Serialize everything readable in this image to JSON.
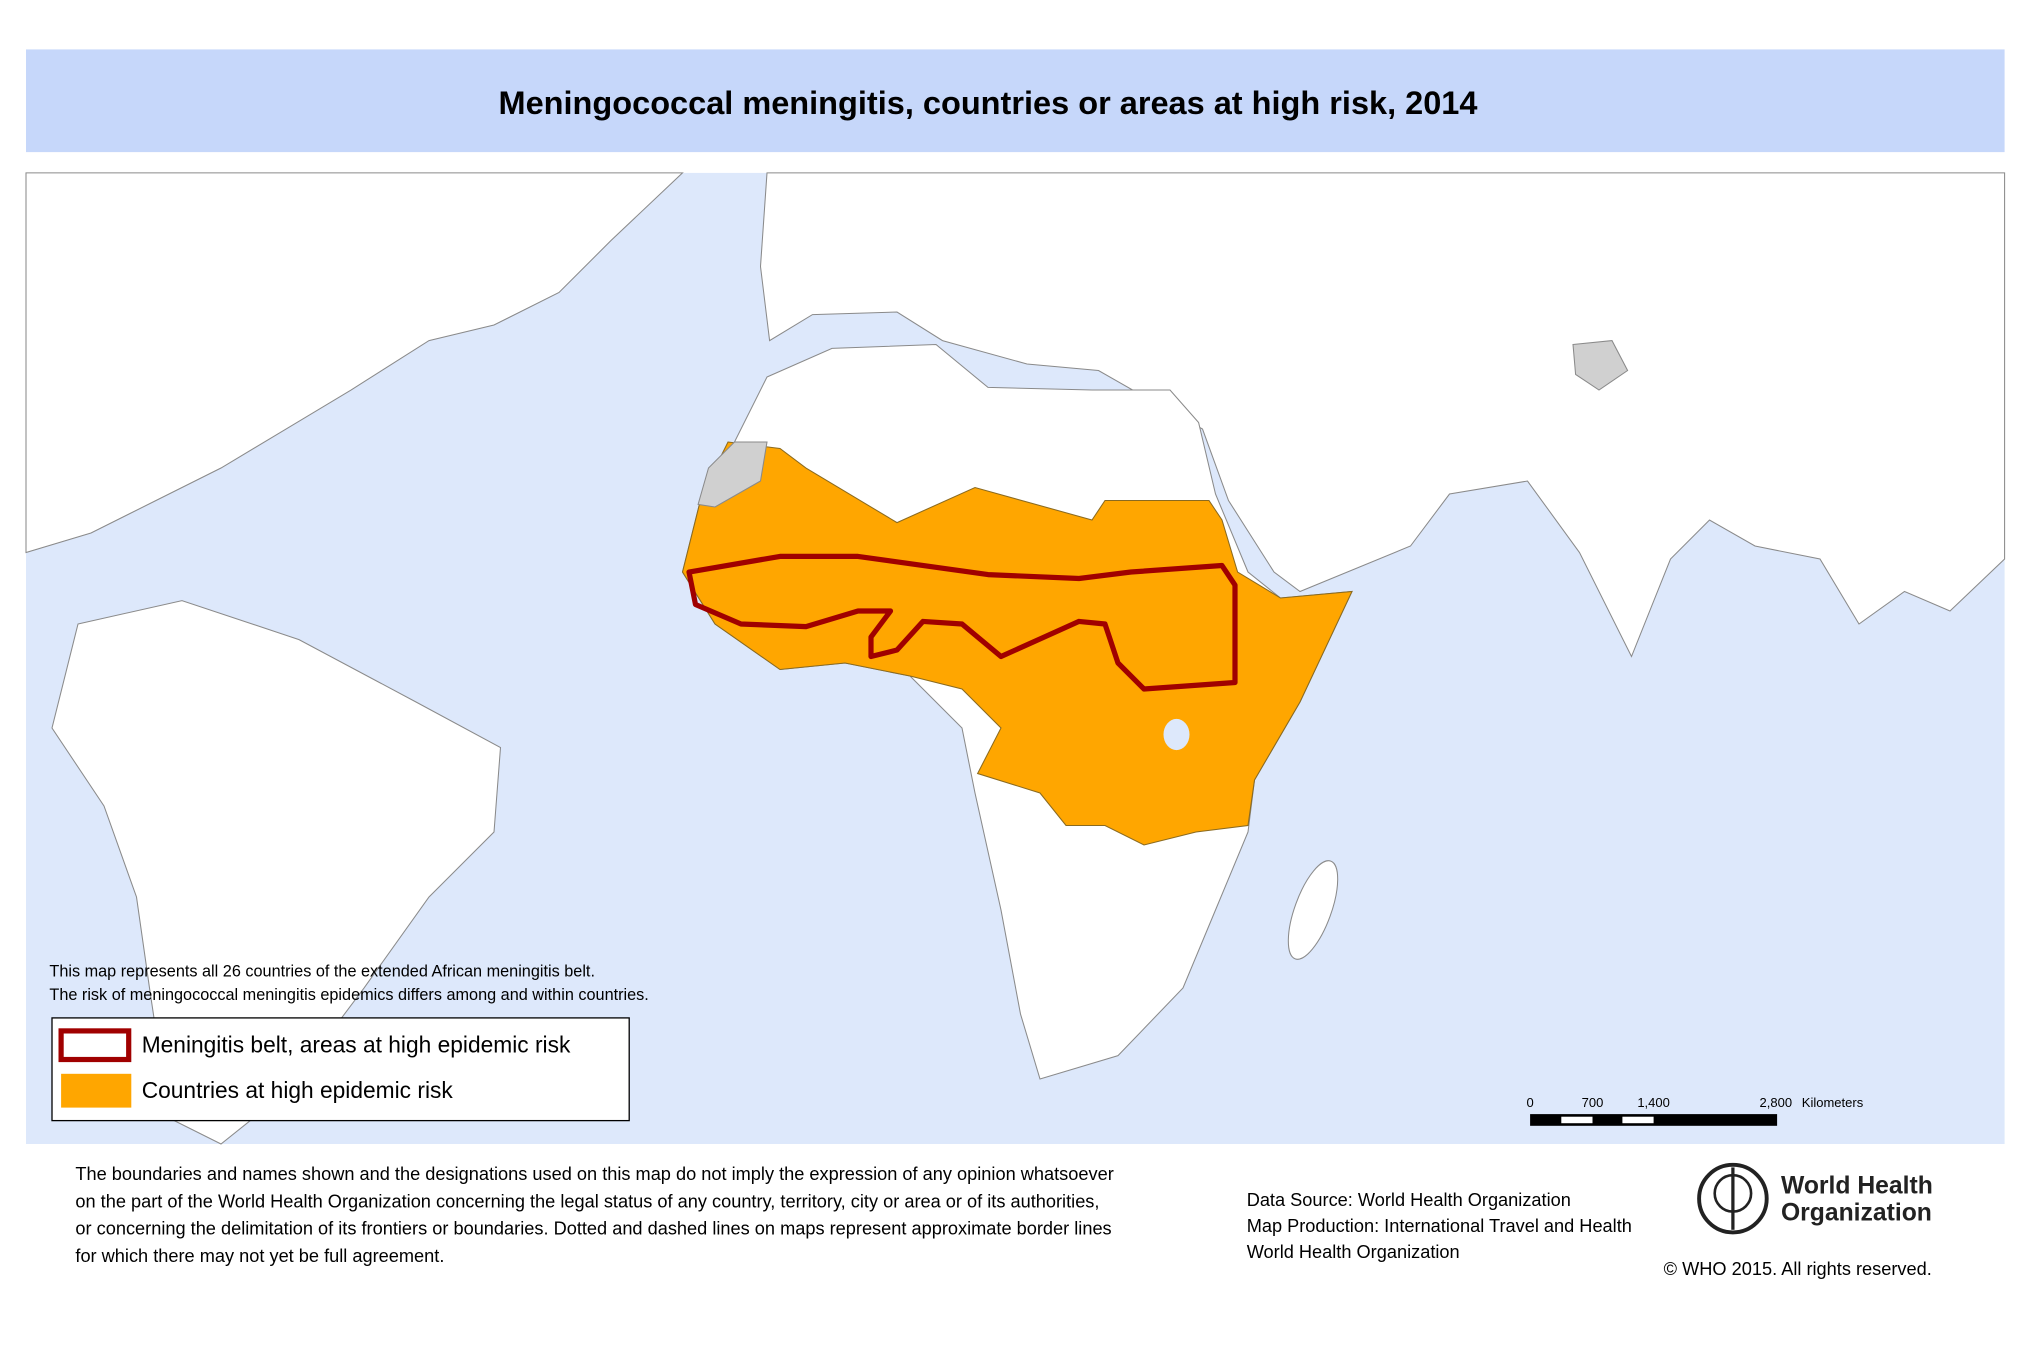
{
  "header": {
    "title": "Meningococcal meningitis, countries or areas at high risk, 2014"
  },
  "map": {
    "note": [
      "This map represents all 26 countries of the extended African meningitis belt.",
      "The risk of meningococcal meningitis epidemics differs among and within countries."
    ],
    "legend": [
      {
        "label": "Meningitis belt, areas at high epidemic risk"
      },
      {
        "label": "Countries at high epidemic risk"
      }
    ],
    "scale_bar": {
      "ticks": [
        "0",
        "700",
        "1,400",
        "2,800"
      ],
      "unit": "Kilometers"
    }
  },
  "footer": {
    "disclaimer": [
      "The boundaries and names shown and the designations used on this map do not imply the expression of any opinion whatsoever",
      "on the part of the World Health Organization concerning the legal status of any country, territory, city or area or of its authorities,",
      "or concerning the delimitation of its frontiers or boundaries. Dotted and dashed lines on maps represent approximate border lines",
      "for which there may not yet be full agreement."
    ],
    "credits": [
      "Data Source: World Health Organization",
      "Map Production: International Travel and Health",
      "World Health Organization"
    ],
    "organization": [
      "World Health",
      "Organization"
    ],
    "copyright": "© WHO 2015. All rights reserved."
  }
}
